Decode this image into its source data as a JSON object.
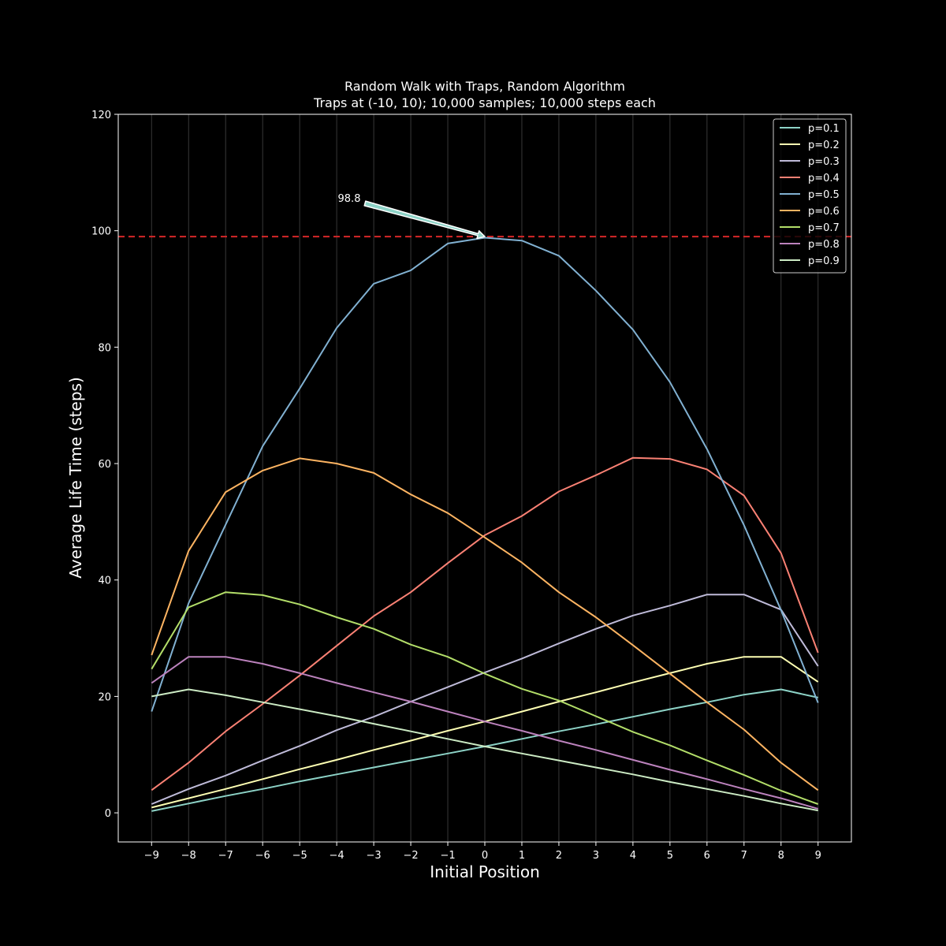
{
  "chart_data": {
    "type": "line",
    "title": "Random Walk with Traps, Random Algorithm",
    "subtitle": "Traps at (-10, 10); 10,000 samples; 10,000 steps each",
    "xlabel": "Initial Position",
    "ylabel": "Average Life Time (steps)",
    "xlim": [
      -9.9,
      9.9
    ],
    "ylim": [
      -5,
      120
    ],
    "x": [
      -9,
      -8,
      -7,
      -6,
      -5,
      -4,
      -3,
      -2,
      -1,
      0,
      1,
      2,
      3,
      4,
      5,
      6,
      7,
      8,
      9
    ],
    "xticks": [
      "−9",
      "−8",
      "−7",
      "−6",
      "−5",
      "−4",
      "−3",
      "−2",
      "−1",
      "0",
      "1",
      "2",
      "3",
      "4",
      "5",
      "6",
      "7",
      "8",
      "9"
    ],
    "yticks": [
      0,
      20,
      40,
      60,
      80,
      100,
      120
    ],
    "grid": "vertical",
    "legend_position": "top-right",
    "reference_line": {
      "y": 99,
      "color": "#d62728",
      "style": "dashed"
    },
    "annotation": {
      "text": "98.8",
      "x": 0,
      "y": 99
    },
    "series": [
      {
        "name": "p=0.1",
        "color": "#8dd3c7",
        "values": [
          0.3,
          1.6,
          2.9,
          4.1,
          5.4,
          6.6,
          7.8,
          9.0,
          10.2,
          11.4,
          12.7,
          14.0,
          15.2,
          16.5,
          17.8,
          19.0,
          20.3,
          21.2,
          19.8
        ]
      },
      {
        "name": "p=0.2",
        "color": "#feffb3",
        "values": [
          0.9,
          2.5,
          4.1,
          5.8,
          7.5,
          9.1,
          10.8,
          12.4,
          14.1,
          15.7,
          17.4,
          19.1,
          20.7,
          22.4,
          24.0,
          25.6,
          26.8,
          26.8,
          22.5
        ]
      },
      {
        "name": "p=0.3",
        "color": "#bfbbd9",
        "values": [
          1.5,
          4.1,
          6.4,
          9.0,
          11.5,
          14.2,
          16.5,
          19.1,
          21.6,
          24.1,
          26.5,
          29.1,
          31.6,
          33.9,
          35.6,
          37.5,
          37.5,
          34.9,
          25.2
        ]
      },
      {
        "name": "p=0.4",
        "color": "#fa8174",
        "values": [
          3.9,
          8.6,
          14.0,
          18.7,
          23.6,
          28.7,
          33.8,
          37.9,
          42.9,
          47.7,
          51.0,
          55.2,
          58.0,
          61.0,
          60.8,
          59.0,
          54.5,
          44.6,
          27.5
        ]
      },
      {
        "name": "p=0.5",
        "color": "#81b1d2",
        "values": [
          17.4,
          36.0,
          49.5,
          63.0,
          72.9,
          83.3,
          90.9,
          93.2,
          97.8,
          98.8,
          98.3,
          95.7,
          89.7,
          83.0,
          74.0,
          62.5,
          49.4,
          34.8,
          18.9
        ]
      },
      {
        "name": "p=0.6",
        "color": "#fdb462",
        "values": [
          27.1,
          45.0,
          55.1,
          58.8,
          60.9,
          60.0,
          58.4,
          54.7,
          51.5,
          47.3,
          43.0,
          37.9,
          33.6,
          28.8,
          23.9,
          19.0,
          14.3,
          8.6,
          3.9
        ]
      },
      {
        "name": "p=0.7",
        "color": "#b3de69",
        "values": [
          24.7,
          35.3,
          37.9,
          37.4,
          35.8,
          33.6,
          31.6,
          28.9,
          26.8,
          23.9,
          21.3,
          19.3,
          16.6,
          13.9,
          11.6,
          9.0,
          6.5,
          3.8,
          1.5
        ]
      },
      {
        "name": "p=0.8",
        "color": "#bc82bd",
        "values": [
          22.3,
          26.8,
          26.8,
          25.6,
          24.0,
          22.3,
          20.7,
          19.1,
          17.4,
          15.7,
          14.1,
          12.4,
          10.8,
          9.1,
          7.4,
          5.8,
          4.1,
          2.5,
          0.7
        ]
      },
      {
        "name": "p=0.9",
        "color": "#ccebc4",
        "values": [
          20.0,
          21.2,
          20.2,
          19.0,
          17.8,
          16.6,
          15.3,
          14.0,
          12.7,
          11.4,
          10.2,
          9.0,
          7.8,
          6.6,
          5.3,
          4.1,
          2.9,
          1.6,
          0.4
        ]
      }
    ]
  }
}
